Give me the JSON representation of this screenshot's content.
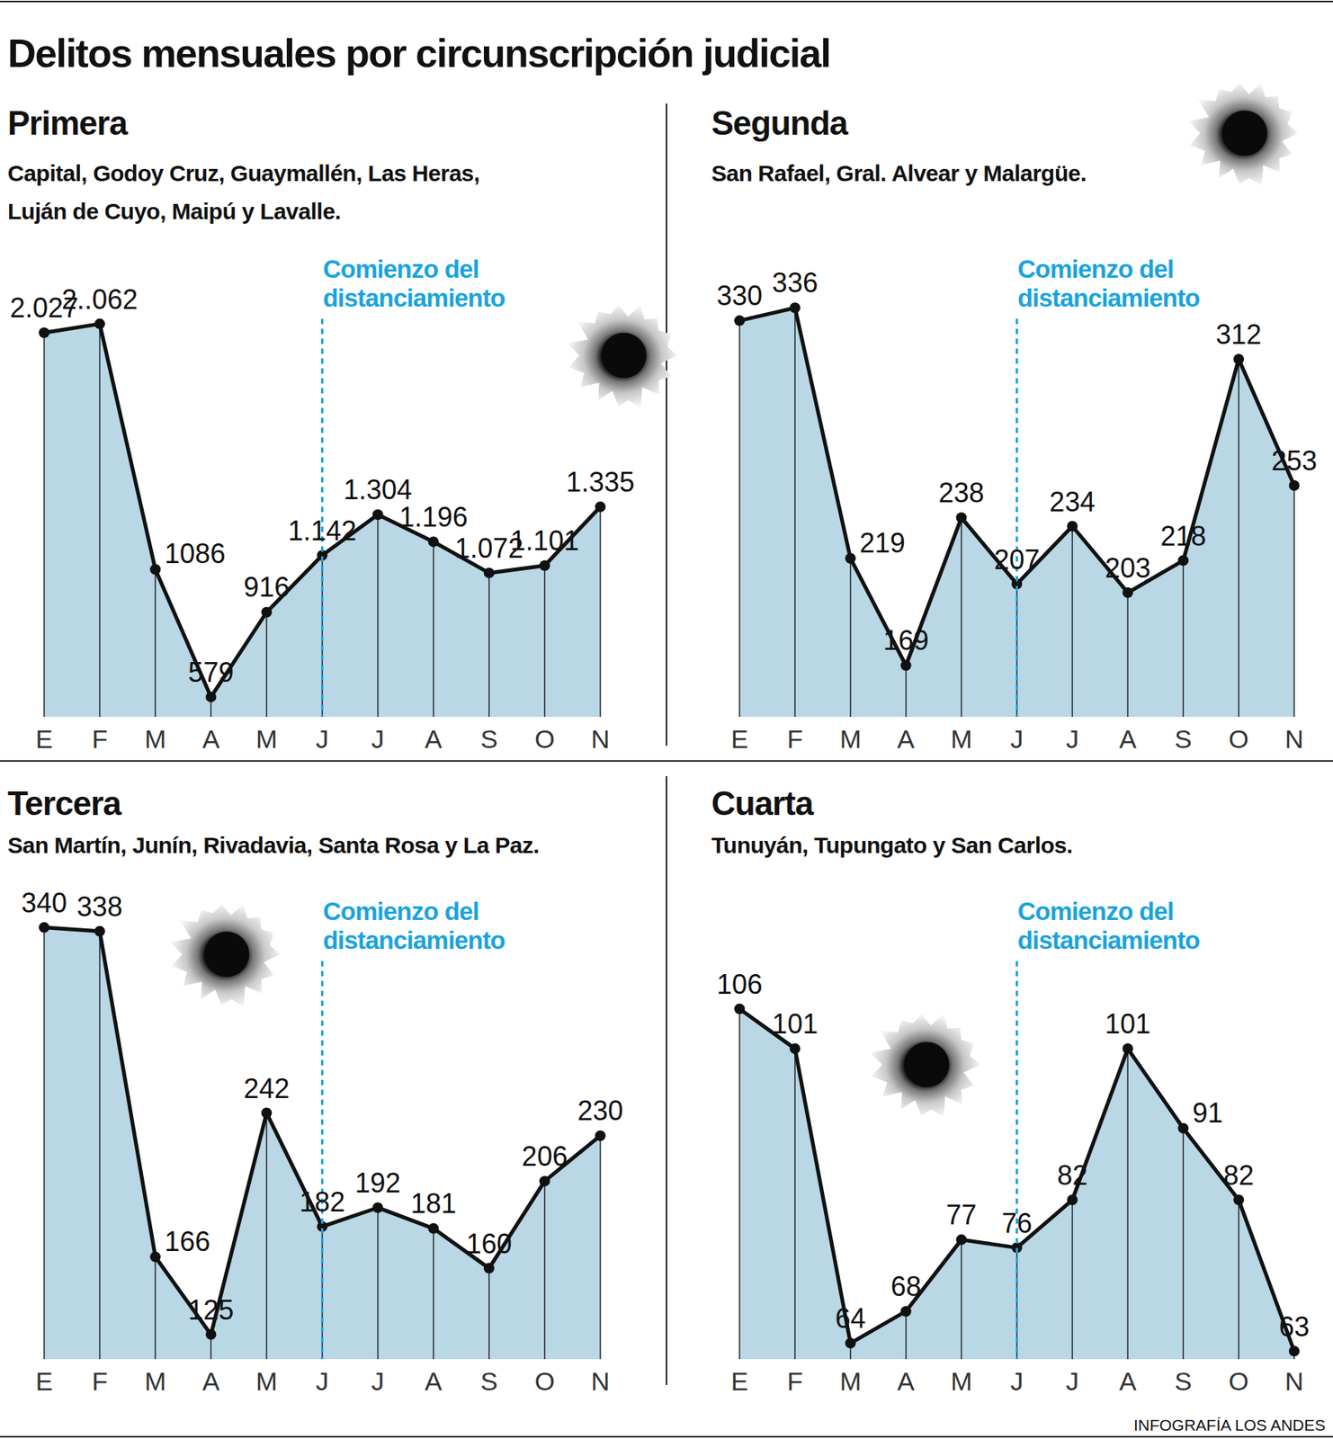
{
  "title": "Delitos mensuales por circunscripción judicial",
  "credit": "INFOGRAFÍA LOS ANDES",
  "chart_data": [
    {
      "type": "area",
      "title": "Primera",
      "subtitle": [
        "Capital, Godoy Cruz, Guaymallén, Las Heras,",
        "Luján de Cuyo, Maipú y Lavalle."
      ],
      "categories": [
        "E",
        "F",
        "M",
        "A",
        "M",
        "J",
        "J",
        "A",
        "S",
        "O",
        "N"
      ],
      "values": [
        2027,
        2062,
        1086,
        579,
        916,
        1142,
        1304,
        1196,
        1072,
        1101,
        1335
      ],
      "value_labels": [
        "2.027",
        "2..062",
        "1086",
        "579",
        "916",
        "1.142",
        "1.304",
        "1.196",
        "1.072",
        "1.101",
        "1.335"
      ],
      "color": "#b9d7e5",
      "marker": "circle",
      "data_labels": true,
      "tick_labels": "x",
      "ylim": [
        500,
        2200
      ],
      "yticks": [],
      "annotation": {
        "text": [
          "Comienzo del",
          "distanciamiento"
        ],
        "at": 5
      }
    },
    {
      "type": "area",
      "title": "Segunda",
      "subtitle": [
        "San Rafael, Gral. Alvear y Malargüe."
      ],
      "categories": [
        "E",
        "F",
        "M",
        "A",
        "M",
        "J",
        "J",
        "A",
        "S",
        "O",
        "N"
      ],
      "values": [
        330,
        336,
        219,
        169,
        238,
        207,
        234,
        203,
        218,
        312,
        253
      ],
      "color": "#b9d7e5",
      "marker": "circle",
      "data_labels": true,
      "tick_labels": "x",
      "ylim": [
        145,
        355
      ],
      "yticks": [],
      "annotation": {
        "text": [
          "Comienzo del",
          "distanciamiento"
        ],
        "at": 5
      }
    },
    {
      "type": "area",
      "title": "Tercera",
      "subtitle": [
        "San Martín, Junín, Rivadavia, Santa Rosa y La Paz."
      ],
      "categories": [
        "E",
        "F",
        "M",
        "A",
        "M",
        "J",
        "J",
        "A",
        "S",
        "O",
        "N"
      ],
      "values": [
        340,
        338,
        166,
        125,
        242,
        182,
        192,
        181,
        160,
        206,
        230
      ],
      "color": "#b9d7e5",
      "marker": "circle",
      "data_labels": true,
      "tick_labels": "x",
      "ylim": [
        112,
        360
      ],
      "yticks": [],
      "annotation": {
        "text": [
          "Comienzo del",
          "distanciamiento"
        ],
        "at": 5
      }
    },
    {
      "type": "area",
      "title": "Cuarta",
      "subtitle": [
        "Tunuyán, Tupungato y San Carlos."
      ],
      "categories": [
        "E",
        "F",
        "M",
        "A",
        "M",
        "J",
        "J",
        "A",
        "S",
        "O",
        "N"
      ],
      "values": [
        106,
        101,
        64,
        68,
        77,
        76,
        82,
        101,
        91,
        82,
        63
      ],
      "color": "#b9d7e5",
      "marker": "circle",
      "data_labels": true,
      "tick_labels": "x",
      "ylim": [
        62,
        112
      ],
      "yticks": [],
      "annotation": {
        "text": [
          "Comienzo del",
          "distanciamiento"
        ],
        "at": 5
      }
    }
  ]
}
